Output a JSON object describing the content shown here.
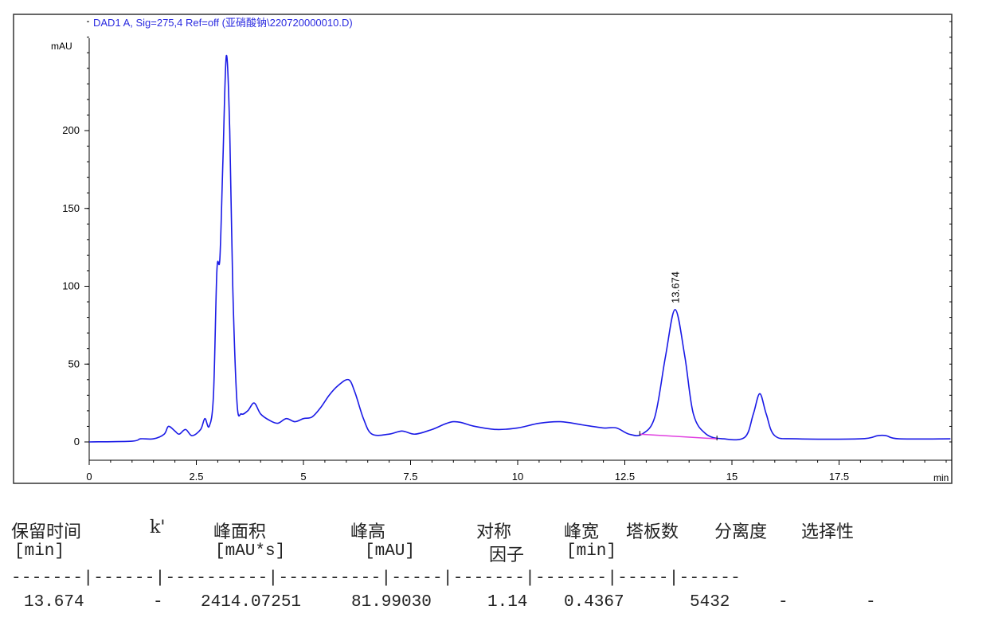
{
  "chart_data": {
    "type": "line",
    "title": "DAD1 A, Sig=275,4 Ref=off (亚硝酸钠\\220720000010.D)",
    "xlabel": "min",
    "ylabel": "mAU",
    "xlim": [
      0,
      20.1
    ],
    "ylim": [
      -12,
      275
    ],
    "x_ticks": [
      "0",
      "2.5",
      "5",
      "7.5",
      "10",
      "12.5",
      "15",
      "17.5"
    ],
    "x_tick_values": [
      0,
      2.5,
      5,
      7.5,
      10,
      12.5,
      15,
      17.5
    ],
    "y_ticks": [
      "0",
      "50",
      "100",
      "150",
      "200"
    ],
    "y_tick_values": [
      0,
      50,
      100,
      150,
      200
    ],
    "grid": false,
    "line_color": "#1a1ae6",
    "baseline_color": "#e040e0",
    "series": [
      {
        "x": [
          0,
          1.0,
          1.2,
          1.5,
          1.75,
          1.85,
          2.0,
          2.1,
          2.25,
          2.4,
          2.6,
          2.7,
          2.8,
          2.9,
          2.98,
          3.05,
          3.12,
          3.2,
          3.28,
          3.35,
          3.45,
          3.55,
          3.7,
          3.85,
          4.0,
          4.2,
          4.4,
          4.6,
          4.8,
          5.0,
          5.2,
          5.4,
          5.6,
          5.8,
          6.05,
          6.2,
          6.4,
          6.6,
          7.0,
          7.3,
          7.6,
          8.0,
          8.5,
          9.0,
          9.5,
          10.0,
          10.5,
          11.0,
          11.5,
          12.0,
          12.3,
          12.6,
          12.9,
          13.2,
          13.45,
          13.674,
          13.9,
          14.1,
          14.4,
          14.8,
          15.3,
          15.5,
          15.65,
          15.8,
          16.0,
          16.5,
          18.0,
          18.4,
          18.6,
          18.9,
          20.1
        ],
        "y": [
          0,
          0.5,
          2,
          2,
          5,
          10,
          7,
          5,
          8,
          4,
          8,
          15,
          10,
          30,
          110,
          118,
          180,
          248,
          200,
          100,
          25,
          18,
          20,
          25,
          18,
          14,
          12,
          15,
          13,
          15,
          16,
          22,
          30,
          36,
          40,
          32,
          15,
          5,
          5,
          7,
          5,
          8,
          13,
          10,
          8,
          9,
          12,
          13,
          11,
          9,
          9,
          5,
          5,
          16,
          55,
          85,
          55,
          18,
          5,
          2,
          3,
          18,
          31,
          18,
          4,
          2,
          2,
          4,
          4,
          2,
          2
        ]
      }
    ],
    "baseline": {
      "x": [
        12.85,
        14.65
      ],
      "y": [
        5,
        2
      ]
    },
    "annotations": [
      {
        "text": "13.674",
        "x": 13.674,
        "y": 85
      }
    ]
  },
  "results_table": {
    "headers_row1": [
      "保留时间",
      "k'",
      "峰面积",
      "峰高",
      "对称",
      "峰宽",
      "塔板数",
      "分离度",
      "选择性"
    ],
    "headers_row2": [
      "[min]",
      "[mAU*s]",
      "[mAU]",
      "因子",
      "[min]"
    ],
    "separator": "-------|------|----------|----------|-----|-------|-------|-----|------",
    "rows": [
      [
        "13.674",
        "-",
        "2414.07251",
        "81.99030",
        "1.14",
        "0.4367",
        "5432",
        "-",
        "-"
      ]
    ]
  }
}
